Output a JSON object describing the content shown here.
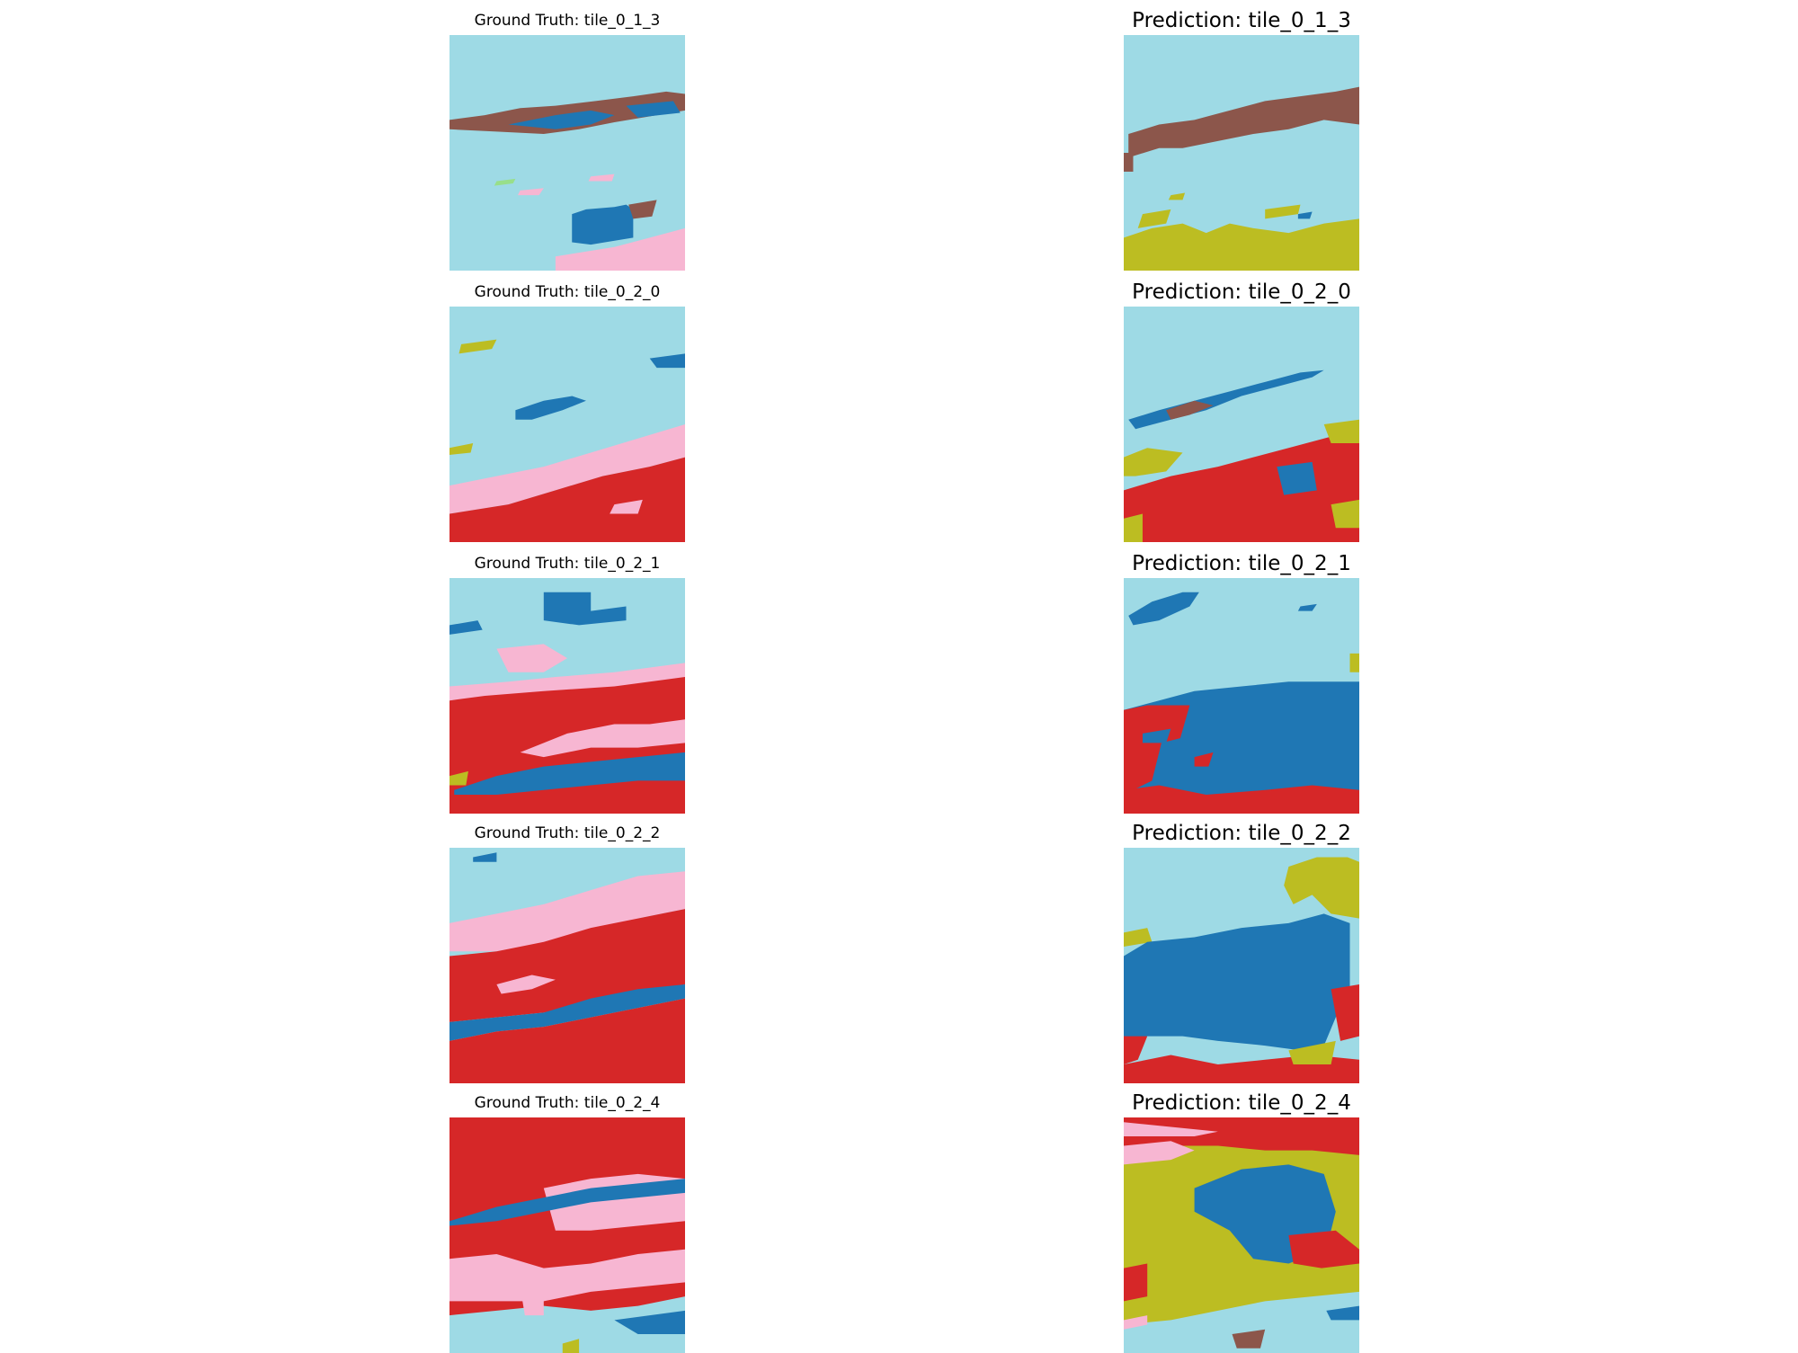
{
  "figure": {
    "rows": [
      {
        "ground_truth": {
          "title": "Ground Truth: tile_0_1_3"
        },
        "prediction": {
          "title": "Prediction: tile_0_1_3"
        }
      },
      {
        "ground_truth": {
          "title": "Ground Truth: tile_0_2_0"
        },
        "prediction": {
          "title": "Prediction: tile_0_2_0"
        }
      },
      {
        "ground_truth": {
          "title": "Ground Truth: tile_0_2_1"
        },
        "prediction": {
          "title": "Prediction: tile_0_2_1"
        }
      },
      {
        "ground_truth": {
          "title": "Ground Truth: tile_0_2_2"
        },
        "prediction": {
          "title": "Prediction: tile_0_2_2"
        }
      },
      {
        "ground_truth": {
          "title": "Ground Truth: tile_0_2_4"
        },
        "prediction": {
          "title": "Prediction: tile_0_2_4"
        }
      }
    ]
  },
  "colors": {
    "light_blue": "#9edae5",
    "dark_blue": "#1f77b4",
    "red": "#d62728",
    "pink": "#f7b6d2",
    "brown": "#8c564b",
    "olive": "#bcbd22",
    "green": "#98df8a",
    "purple": "#9467bd"
  }
}
